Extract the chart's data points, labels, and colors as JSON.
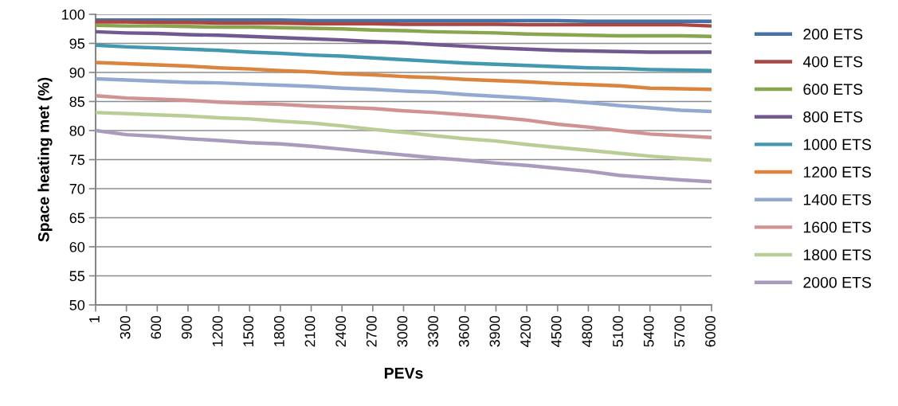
{
  "chart_data": {
    "type": "line",
    "xlabel": "PEVs",
    "ylabel": "Space heating met (%)",
    "categories": [
      "1",
      "300",
      "600",
      "900",
      "1200",
      "1500",
      "1800",
      "2100",
      "2400",
      "2700",
      "3000",
      "3300",
      "3600",
      "3900",
      "4200",
      "4500",
      "4800",
      "5100",
      "5400",
      "5700",
      "6000"
    ],
    "ylim": [
      50,
      100
    ],
    "yticks": [
      50,
      55,
      60,
      65,
      70,
      75,
      80,
      85,
      90,
      95,
      100
    ],
    "grid": "y",
    "legend": "right",
    "marker": "none",
    "line_style": "solid",
    "series": [
      {
        "name": "200 ETS",
        "color": "#4572a7",
        "values": [
          99.0,
          99.0,
          99.0,
          99.0,
          99.0,
          99.0,
          99.0,
          98.9,
          98.9,
          98.9,
          98.9,
          98.9,
          98.9,
          98.9,
          98.9,
          98.9,
          98.8,
          98.8,
          98.8,
          98.8,
          98.8
        ]
      },
      {
        "name": "400 ETS",
        "color": "#aa4643",
        "values": [
          98.7,
          98.7,
          98.6,
          98.6,
          98.5,
          98.5,
          98.5,
          98.4,
          98.4,
          98.4,
          98.3,
          98.3,
          98.3,
          98.3,
          98.2,
          98.2,
          98.2,
          98.2,
          98.2,
          98.2,
          98.0
        ]
      },
      {
        "name": "600 ETS",
        "color": "#89a54e",
        "values": [
          98.1,
          98.0,
          98.0,
          97.9,
          97.8,
          97.8,
          97.7,
          97.6,
          97.5,
          97.3,
          97.2,
          97.0,
          96.9,
          96.8,
          96.6,
          96.5,
          96.4,
          96.3,
          96.3,
          96.3,
          96.2
        ]
      },
      {
        "name": "800 ETS",
        "color": "#71588f",
        "values": [
          97.0,
          96.8,
          96.7,
          96.5,
          96.4,
          96.2,
          96.0,
          95.8,
          95.6,
          95.3,
          95.1,
          94.8,
          94.5,
          94.2,
          94.0,
          93.8,
          93.7,
          93.6,
          93.5,
          93.5,
          93.5
        ]
      },
      {
        "name": "1000 ETS",
        "color": "#4198af",
        "values": [
          94.7,
          94.4,
          94.2,
          94.0,
          93.8,
          93.5,
          93.3,
          93.0,
          92.8,
          92.5,
          92.2,
          91.9,
          91.6,
          91.4,
          91.2,
          91.0,
          90.8,
          90.7,
          90.5,
          90.4,
          90.3
        ]
      },
      {
        "name": "1200 ETS",
        "color": "#db843d",
        "values": [
          91.7,
          91.5,
          91.3,
          91.1,
          90.8,
          90.6,
          90.3,
          90.1,
          89.8,
          89.6,
          89.3,
          89.1,
          88.8,
          88.6,
          88.4,
          88.1,
          87.9,
          87.7,
          87.3,
          87.2,
          87.1
        ]
      },
      {
        "name": "1400 ETS",
        "color": "#93a9cf",
        "values": [
          88.9,
          88.7,
          88.5,
          88.3,
          88.2,
          88.0,
          87.8,
          87.6,
          87.3,
          87.1,
          86.8,
          86.6,
          86.2,
          85.9,
          85.6,
          85.2,
          84.8,
          84.3,
          83.9,
          83.5,
          83.3
        ]
      },
      {
        "name": "1600 ETS",
        "color": "#d19392",
        "values": [
          86.0,
          85.6,
          85.4,
          85.2,
          84.9,
          84.7,
          84.5,
          84.2,
          84.0,
          83.8,
          83.4,
          83.1,
          82.7,
          82.3,
          81.8,
          81.1,
          80.6,
          80.0,
          79.4,
          79.1,
          78.8
        ]
      },
      {
        "name": "1800 ETS",
        "color": "#b9cd96",
        "values": [
          83.1,
          82.9,
          82.7,
          82.5,
          82.2,
          82.0,
          81.6,
          81.3,
          80.8,
          80.2,
          79.7,
          79.1,
          78.6,
          78.2,
          77.6,
          77.1,
          76.6,
          76.1,
          75.6,
          75.2,
          74.9
        ]
      },
      {
        "name": "2000 ETS",
        "color": "#a99bbd",
        "values": [
          80.0,
          79.3,
          79.0,
          78.6,
          78.3,
          77.9,
          77.7,
          77.3,
          76.8,
          76.3,
          75.8,
          75.3,
          74.9,
          74.4,
          74.0,
          73.5,
          73.0,
          72.3,
          71.9,
          71.5,
          71.2
        ]
      }
    ]
  }
}
